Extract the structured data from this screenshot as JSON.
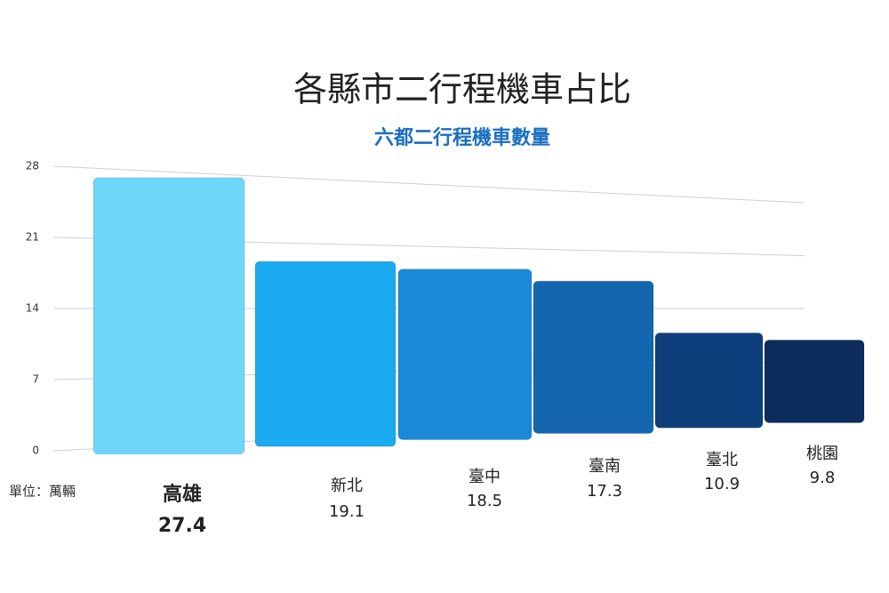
{
  "chart_data": {
    "type": "bar",
    "title": "各縣市二行程機車占比",
    "subtitle": "六都二行程機車數量",
    "unit_label": "單位：萬輛",
    "categories": [
      "高雄",
      "新北",
      "臺中",
      "臺南",
      "臺北",
      "桃園"
    ],
    "values": [
      27.4,
      19.1,
      18.5,
      17.3,
      10.9,
      9.8
    ],
    "colors": [
      "#6fd6fb",
      "#1aaaf0",
      "#1a8ad8",
      "#1466ae",
      "#0f3f7a",
      "#0c2c5c"
    ],
    "ylim": [
      0,
      28
    ],
    "yticks": [
      0,
      7,
      14,
      21,
      28
    ],
    "grid": true
  }
}
